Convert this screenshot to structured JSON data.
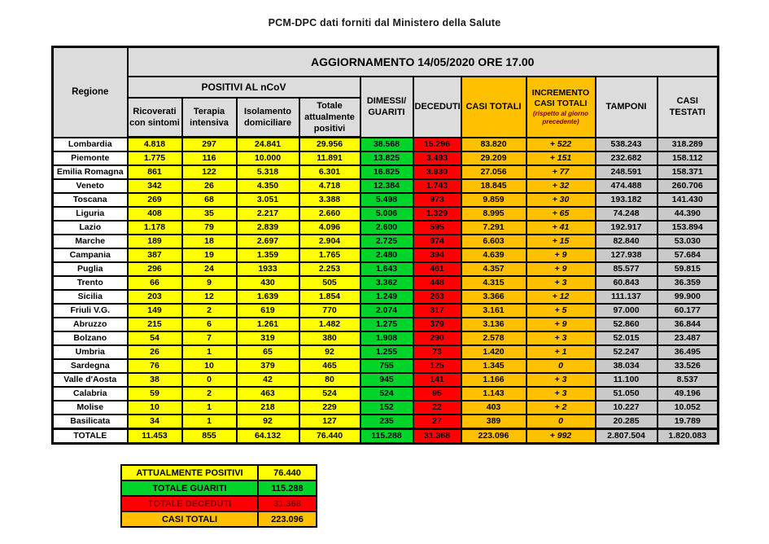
{
  "page": {
    "title": "PCM-DPC dati forniti dal Ministero della Salute"
  },
  "colors": {
    "yellow": "#FFFF00",
    "green": "#00D42A",
    "red": "#FF0000",
    "orange": "#FFC000",
    "header_gray": "#DCDCDC",
    "data_gray": "#C9C9C9",
    "dark_red_text": "#7A0000"
  },
  "table": {
    "headers": {
      "regione": "Regione",
      "banner": "AGGIORNAMENTO 14/05/2020 ORE 17.00",
      "positivi_group": "POSITIVI AL nCoV",
      "ricoverati": "Ricoverati con sintomi",
      "terapia": "Terapia intensiva",
      "isolamento": "Isolamento domiciliare",
      "totale_positivi": "Totale attualmente positivi",
      "dimessi": "DIMESSI/ GUARITI",
      "deceduti": "DECEDUTI",
      "casi_totali": "CASI TOTALI",
      "incremento_title": "INCREMENTO CASI TOTALI",
      "incremento_sub": "(rispetto al giorno precedente)",
      "tamponi": "TAMPONI",
      "casi_testati": "CASI TESTATI"
    }
  },
  "chart_data": {
    "type": "table",
    "title": "AGGIORNAMENTO 14/05/2020 ORE 17.00",
    "columns": [
      "Regione",
      "Ricoverati con sintomi",
      "Terapia intensiva",
      "Isolamento domiciliare",
      "Totale attualmente positivi",
      "DIMESSI/GUARITI",
      "DECEDUTI",
      "CASI TOTALI",
      "INCREMENTO CASI TOTALI (rispetto al giorno precedente)",
      "TAMPONI",
      "CASI TESTATI"
    ],
    "rows": [
      [
        "Lombardia",
        "4.818",
        "297",
        "24.841",
        "29.956",
        "38.568",
        "15.296",
        "83.820",
        "+ 522",
        "538.243",
        "318.289"
      ],
      [
        "Piemonte",
        "1.775",
        "116",
        "10.000",
        "11.891",
        "13.825",
        "3.493",
        "29.209",
        "+ 151",
        "232.682",
        "158.112"
      ],
      [
        "Emilia Romagna",
        "861",
        "122",
        "5.318",
        "6.301",
        "16.825",
        "3.930",
        "27.056",
        "+ 77",
        "248.591",
        "158.371"
      ],
      [
        "Veneto",
        "342",
        "26",
        "4.350",
        "4.718",
        "12.384",
        "1.743",
        "18.845",
        "+ 32",
        "474.488",
        "260.706"
      ],
      [
        "Toscana",
        "269",
        "68",
        "3.051",
        "3.388",
        "5.498",
        "973",
        "9.859",
        "+ 30",
        "193.182",
        "141.430"
      ],
      [
        "Liguria",
        "408",
        "35",
        "2.217",
        "2.660",
        "5.006",
        "1.329",
        "8.995",
        "+ 65",
        "74.248",
        "44.390"
      ],
      [
        "Lazio",
        "1.178",
        "79",
        "2.839",
        "4.096",
        "2.600",
        "595",
        "7.291",
        "+ 41",
        "192.917",
        "153.894"
      ],
      [
        "Marche",
        "189",
        "18",
        "2.697",
        "2.904",
        "2.725",
        "974",
        "6.603",
        "+ 15",
        "82.840",
        "53.030"
      ],
      [
        "Campania",
        "387",
        "19",
        "1.359",
        "1.765",
        "2.480",
        "394",
        "4.639",
        "+ 9",
        "127.938",
        "57.684"
      ],
      [
        "Puglia",
        "296",
        "24",
        "1933",
        "2.253",
        "1.643",
        "461",
        "4.357",
        "+ 9",
        "85.577",
        "59.815"
      ],
      [
        "Trento",
        "66",
        "9",
        "430",
        "505",
        "3.362",
        "448",
        "4.315",
        "+ 3",
        "60.843",
        "36.359"
      ],
      [
        "Sicilia",
        "203",
        "12",
        "1.639",
        "1.854",
        "1.249",
        "263",
        "3.366",
        "+ 12",
        "111.137",
        "99.900"
      ],
      [
        "Friuli V.G.",
        "149",
        "2",
        "619",
        "770",
        "2.074",
        "317",
        "3.161",
        "+ 5",
        "97.000",
        "60.177"
      ],
      [
        "Abruzzo",
        "215",
        "6",
        "1.261",
        "1.482",
        "1.275",
        "379",
        "3.136",
        "+ 9",
        "52.860",
        "36.844"
      ],
      [
        "Bolzano",
        "54",
        "7",
        "319",
        "380",
        "1.908",
        "290",
        "2.578",
        "+ 3",
        "52.015",
        "23.487"
      ],
      [
        "Umbria",
        "26",
        "1",
        "65",
        "92",
        "1.255",
        "73",
        "1.420",
        "+ 1",
        "52.247",
        "36.495"
      ],
      [
        "Sardegna",
        "76",
        "10",
        "379",
        "465",
        "755",
        "125",
        "1.345",
        "0",
        "38.034",
        "33.526"
      ],
      [
        "Valle d'Aosta",
        "38",
        "0",
        "42",
        "80",
        "945",
        "141",
        "1.166",
        "+ 3",
        "11.100",
        "8.537"
      ],
      [
        "Calabria",
        "59",
        "2",
        "463",
        "524",
        "524",
        "95",
        "1.143",
        "+ 3",
        "51.050",
        "49.196"
      ],
      [
        "Molise",
        "10",
        "1",
        "218",
        "229",
        "152",
        "22",
        "403",
        "+ 2",
        "10.227",
        "10.052"
      ],
      [
        "Basilicata",
        "34",
        "1",
        "92",
        "127",
        "235",
        "27",
        "389",
        "0",
        "20.285",
        "19.789"
      ]
    ],
    "total_row": [
      "TOTALE",
      "11.453",
      "855",
      "64.132",
      "76.440",
      "115.288",
      "31.368",
      "223.096",
      "+ 992",
      "2.807.504",
      "1.820.083"
    ]
  },
  "summary": {
    "rows": [
      {
        "label": "ATTUALMENTE POSITIVI",
        "value": "76.440",
        "color": "yellow"
      },
      {
        "label": "TOTALE GUARITI",
        "value": "115.288",
        "color": "green"
      },
      {
        "label": "TOTALE DECEDUTI",
        "value": "31.368",
        "color": "red"
      },
      {
        "label": "CASI TOTALI",
        "value": "223.096",
        "color": "orange"
      }
    ]
  }
}
